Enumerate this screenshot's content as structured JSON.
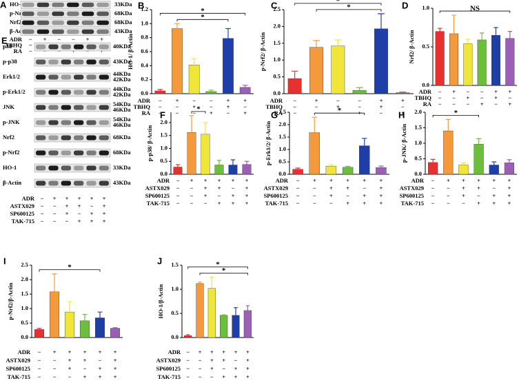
{
  "blots": [
    {
      "panel": "A",
      "rows": [
        {
          "label": "HO-1",
          "kda": [
            "33KDa"
          ]
        },
        {
          "label": "p-Nrf2",
          "kda": [
            "68KDa"
          ]
        },
        {
          "label": "Nrf2",
          "kda": [
            "68KDa"
          ]
        },
        {
          "label": "β-Actin",
          "kda": [
            "43KDa"
          ]
        }
      ],
      "treatments": [
        {
          "name": "ADR",
          "signs": [
            "−",
            "+",
            "−",
            "−",
            "+",
            "+"
          ]
        },
        {
          "name": "TBHQ",
          "signs": [
            "−",
            "−",
            "+",
            "−",
            "+",
            "−"
          ]
        },
        {
          "name": "RA",
          "signs": [
            "−",
            "−",
            "−",
            "+",
            "−",
            "+"
          ]
        }
      ]
    },
    {
      "panel": "E",
      "rows": [
        {
          "label": "p38",
          "kda": [
            "40KDa"
          ]
        },
        {
          "label": "p-p38",
          "kda": [
            "43KDa"
          ]
        },
        {
          "label": "Erk1/2",
          "kda": [
            "44KDa",
            "42KDa"
          ]
        },
        {
          "label": "p-Erk1/2",
          "kda": [
            "44KDa",
            "42KDa"
          ]
        },
        {
          "label": "JNK",
          "kda": [
            "54KDa",
            "46KDa"
          ]
        },
        {
          "label": "p-JNK",
          "kda": [
            "54KDa",
            "46KDa"
          ]
        },
        {
          "label": "Nrf2",
          "kda": [
            "68KDa"
          ]
        },
        {
          "label": "p-Nrf2",
          "kda": [
            "68KDa"
          ]
        },
        {
          "label": "HO-1",
          "kda": [
            "33KDa"
          ]
        },
        {
          "label": "β-Actin",
          "kda": [
            "43KDa"
          ]
        }
      ],
      "treatments": [
        {
          "name": "ADR",
          "signs": [
            "−",
            "+",
            "+",
            "+",
            "+",
            "+"
          ]
        },
        {
          "name": "ASTX029",
          "signs": [
            "−",
            "−",
            "+",
            "+",
            "−",
            "+"
          ]
        },
        {
          "name": "SP600125",
          "signs": [
            "−",
            "−",
            "+",
            "−",
            "+",
            "+"
          ]
        },
        {
          "name": "TAK-715",
          "signs": [
            "−",
            "−",
            "−",
            "+",
            "+",
            "+"
          ]
        }
      ]
    }
  ],
  "chart_data": [
    {
      "type": "bar",
      "panel": "B",
      "ylabel": "HO-1/ β-Actin",
      "colors": [
        "#e8312f",
        "#f59a3c",
        "#f0e63a",
        "#6cbf3a",
        "#1f3fa8",
        "#9b5fb5"
      ],
      "values": [
        0.04,
        0.93,
        0.41,
        0.03,
        0.79,
        0.09
      ],
      "errors": [
        0.02,
        0.07,
        0.09,
        0.02,
        0.14,
        0.03
      ],
      "ylim": [
        0,
        1.2
      ],
      "yticks": [
        {
          "value": 0,
          "label": "0.0"
        },
        0.2,
        0.4,
        0.6,
        0.8,
        {
          "value": 1,
          "label": "1.0"
        },
        1.2
      ],
      "brackets": [
        {
          "label": "*",
          "from": 1,
          "to": 4
        },
        {
          "label": "*",
          "from": 0,
          "to": 5
        }
      ],
      "treatments": [
        {
          "name": "ADR",
          "signs": [
            "−",
            "+",
            "−",
            "−",
            "+",
            "+"
          ]
        },
        {
          "name": "TBHQ",
          "signs": [
            "−",
            "−",
            "+",
            "−",
            "+",
            "−"
          ]
        },
        {
          "name": "RA",
          "signs": [
            "−",
            "−",
            "−",
            "+",
            "−",
            "+"
          ]
        }
      ]
    },
    {
      "type": "bar",
      "panel": "C",
      "ylabel": "p-Nrf2/ β-Actin",
      "colors": [
        "#e8312f",
        "#f59a3c",
        "#f0e63a",
        "#6cbf3a",
        "#1f3fa8",
        "#9b5fb5"
      ],
      "values": [
        0.45,
        1.38,
        1.42,
        0.1,
        1.93,
        0.03
      ],
      "errors": [
        0.22,
        0.2,
        0.18,
        0.08,
        0.45,
        0.02
      ],
      "ylim": [
        0,
        2.5
      ],
      "yticks": [
        {
          "value": 0,
          "label": "0.0"
        },
        0.5,
        {
          "value": 1,
          "label": "1.0"
        },
        1.5,
        {
          "value": 2,
          "label": "2.0"
        },
        2.5
      ],
      "brackets": [
        {
          "label": "*",
          "from": 1,
          "to": 4
        },
        {
          "label": "*",
          "from": 0,
          "to": 4
        }
      ],
      "treatments": [
        {
          "name": "ADR",
          "signs": [
            "−",
            "+",
            "−",
            "−",
            "+",
            "+"
          ]
        },
        {
          "name": "TBHQ",
          "signs": [
            "−",
            "−",
            "+",
            "−",
            "+",
            "−"
          ]
        },
        {
          "name": "RA",
          "signs": [
            "−",
            "−",
            "−",
            "+",
            "−",
            "+"
          ]
        }
      ]
    },
    {
      "type": "bar",
      "panel": "D",
      "ylabel": "Nrf2/ β-Actin",
      "colors": [
        "#e8312f",
        "#f59a3c",
        "#f0e63a",
        "#6cbf3a",
        "#1f3fa8",
        "#9b5fb5"
      ],
      "values": [
        0.7,
        0.67,
        0.54,
        0.59,
        0.65,
        0.61
      ],
      "errors": [
        0.04,
        0.24,
        0.06,
        0.09,
        0.1,
        0.09
      ],
      "ylim": [
        0,
        1
      ],
      "yticks": [
        {
          "value": 0,
          "label": "0.0"
        },
        0.5,
        {
          "value": 1,
          "label": "1.0"
        }
      ],
      "brackets": [
        {
          "label": "NS",
          "from": 0,
          "to": 5
        }
      ],
      "treatments": [
        {
          "name": "ADR",
          "signs": [
            "−",
            "+",
            "−",
            "−",
            "+",
            "+"
          ]
        },
        {
          "name": "TBHQ",
          "signs": [
            "−",
            "−",
            "+",
            "−",
            "+",
            "−"
          ]
        },
        {
          "name": "RA",
          "signs": [
            "−",
            "−",
            "−",
            "+",
            "−",
            "+"
          ]
        }
      ]
    },
    {
      "type": "bar",
      "panel": "F",
      "ylabel": "p-p38/ β-Actin",
      "colors": [
        "#e8312f",
        "#f59a3c",
        "#f0e63a",
        "#6cbf3a",
        "#1f3fa8",
        "#9b5fb5"
      ],
      "values": [
        0.28,
        1.62,
        1.55,
        0.36,
        0.36,
        0.38
      ],
      "errors": [
        0.09,
        0.65,
        0.45,
        0.18,
        0.2,
        0.12
      ],
      "ylim": [
        0,
        2.4
      ],
      "yticks": [
        {
          "value": 0,
          "label": "0.0"
        },
        0.5,
        {
          "value": 1,
          "label": "1.0"
        },
        1.5,
        {
          "value": 2,
          "label": "2.0"
        }
      ],
      "brackets": [
        {
          "label": "*",
          "from": 1,
          "to": 2
        }
      ],
      "treatments": [
        {
          "name": "ADR",
          "signs": [
            "−",
            "+",
            "+",
            "+",
            "+",
            "+"
          ]
        },
        {
          "name": "ASTX029",
          "signs": [
            "−",
            "−",
            "+",
            "+",
            "−",
            "+"
          ]
        },
        {
          "name": "SP600125",
          "signs": [
            "−",
            "−",
            "+",
            "−",
            "+",
            "+"
          ]
        },
        {
          "name": "TAK-715",
          "signs": [
            "−",
            "−",
            "−",
            "+",
            "+",
            "+"
          ]
        }
      ]
    },
    {
      "type": "bar",
      "panel": "G",
      "ylabel": "p-Erk1/2/ β-Actin",
      "colors": [
        "#e8312f",
        "#f59a3c",
        "#f0e63a",
        "#6cbf3a",
        "#1f3fa8",
        "#9b5fb5"
      ],
      "values": [
        0.2,
        1.68,
        0.33,
        0.28,
        1.15,
        0.27
      ],
      "errors": [
        0.05,
        0.62,
        0.06,
        0.04,
        0.3,
        0.06
      ],
      "ylim": [
        0,
        2.5
      ],
      "yticks": [
        {
          "value": 0,
          "label": "0.0"
        },
        0.5,
        {
          "value": 1,
          "label": "1.0"
        },
        1.5,
        {
          "value": 2,
          "label": "2.0"
        },
        2.5
      ],
      "brackets": [
        {
          "label": "*",
          "from": 1,
          "to": 4
        }
      ],
      "treatments": [
        {
          "name": "ADR",
          "signs": [
            "−",
            "+",
            "+",
            "+",
            "+",
            "+"
          ]
        },
        {
          "name": "ASTX029",
          "signs": [
            "−",
            "−",
            "+",
            "+",
            "−",
            "+"
          ]
        },
        {
          "name": "SP600125",
          "signs": [
            "−",
            "−",
            "+",
            "−",
            "+",
            "+"
          ]
        },
        {
          "name": "TAK-715",
          "signs": [
            "−",
            "−",
            "−",
            "+",
            "+",
            "+"
          ]
        }
      ]
    },
    {
      "type": "bar",
      "panel": "H",
      "ylabel": "p-JNK/ β-Actin",
      "colors": [
        "#e8312f",
        "#f59a3c",
        "#f0e63a",
        "#6cbf3a",
        "#1f3fa8",
        "#9b5fb5"
      ],
      "values": [
        0.38,
        1.4,
        0.3,
        0.97,
        0.3,
        0.37
      ],
      "errors": [
        0.1,
        0.37,
        0.07,
        0.18,
        0.1,
        0.1
      ],
      "ylim": [
        0,
        2
      ],
      "yticks": [
        {
          "value": 0,
          "label": "0.0"
        },
        0.5,
        {
          "value": 1,
          "label": "1.0"
        },
        1.5,
        {
          "value": 2,
          "label": "2.0"
        }
      ],
      "brackets": [
        {
          "label": "*",
          "from": 0,
          "to": 3
        }
      ],
      "treatments": [
        {
          "name": "ADR",
          "signs": [
            "−",
            "+",
            "+",
            "+",
            "+",
            "+"
          ]
        },
        {
          "name": "ASTX029",
          "signs": [
            "−",
            "−",
            "+",
            "+",
            "−",
            "+"
          ]
        },
        {
          "name": "SP600125",
          "signs": [
            "−",
            "−",
            "+",
            "−",
            "+",
            "+"
          ]
        },
        {
          "name": "TAK-715",
          "signs": [
            "−",
            "−",
            "−",
            "+",
            "+",
            "+"
          ]
        }
      ]
    },
    {
      "type": "bar",
      "panel": "I",
      "ylabel": "p-Nrf2/β-Actin",
      "colors": [
        "#e8312f",
        "#f59a3c",
        "#f0e63a",
        "#6cbf3a",
        "#1f3fa8",
        "#9b5fb5"
      ],
      "values": [
        0.28,
        1.58,
        0.88,
        0.58,
        0.68,
        0.32
      ],
      "errors": [
        0.04,
        0.62,
        0.36,
        0.22,
        0.2,
        0.02
      ],
      "ylim": [
        0,
        2.5
      ],
      "yticks": [
        {
          "value": 0,
          "label": "0.0"
        },
        0.5,
        {
          "value": 1,
          "label": "1.0"
        },
        1.5,
        {
          "value": 2,
          "label": "2.0"
        },
        2.5
      ],
      "brackets": [
        {
          "label": "*",
          "from": 0,
          "to": 4
        }
      ],
      "treatments": [
        {
          "name": "ADR",
          "signs": [
            "−",
            "+",
            "+",
            "+",
            "+",
            "+"
          ]
        },
        {
          "name": "ASTX029",
          "signs": [
            "−",
            "−",
            "+",
            "+",
            "−",
            "+"
          ]
        },
        {
          "name": "SP600125",
          "signs": [
            "−",
            "−",
            "+",
            "−",
            "+",
            "+"
          ]
        },
        {
          "name": "TAK-715",
          "signs": [
            "−",
            "−",
            "−",
            "+",
            "+",
            "+"
          ]
        }
      ]
    },
    {
      "type": "bar",
      "panel": "J",
      "ylabel": "HO-1/β-Actin",
      "colors": [
        "#e8312f",
        "#f59a3c",
        "#f0e63a",
        "#6cbf3a",
        "#1f3fa8",
        "#9b5fb5"
      ],
      "values": [
        0.04,
        1.12,
        1.02,
        0.46,
        0.46,
        0.56
      ],
      "errors": [
        0.02,
        0.03,
        0.23,
        0.01,
        0.16,
        0.1
      ],
      "ylim": [
        0,
        1.5
      ],
      "yticks": [
        {
          "value": 0,
          "label": "0.0"
        },
        0.5,
        {
          "value": 1,
          "label": "1.0"
        },
        1.5
      ],
      "brackets": [
        {
          "label": "*",
          "from": 1,
          "to": 5
        },
        {
          "label": "*",
          "from": 0,
          "to": 5
        }
      ],
      "treatments": [
        {
          "name": "ADR",
          "signs": [
            "−",
            "+",
            "+",
            "+",
            "+",
            "+"
          ]
        },
        {
          "name": "ASTX029",
          "signs": [
            "−",
            "−",
            "+",
            "+",
            "−",
            "+"
          ]
        },
        {
          "name": "SP600125",
          "signs": [
            "−",
            "−",
            "+",
            "−",
            "+",
            "+"
          ]
        },
        {
          "name": "TAK-715",
          "signs": [
            "−",
            "−",
            "−",
            "+",
            "+",
            "+"
          ]
        }
      ]
    }
  ]
}
